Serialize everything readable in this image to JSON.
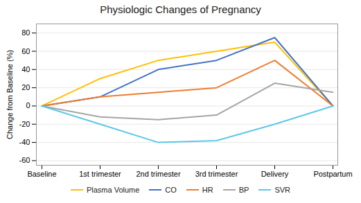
{
  "chart_data": {
    "type": "line",
    "title": "Physiologic Changes of Pregnancy",
    "ylabel": "Change from Baseline (%)",
    "categories": [
      "Baseline",
      "1st trimester",
      "2nd trimester",
      "3rd trimester",
      "Delivery",
      "Postpartum"
    ],
    "series": [
      {
        "name": "Plasma Volume",
        "color": "#FFC000",
        "values": [
          0,
          30,
          50,
          60,
          70,
          0
        ]
      },
      {
        "name": "CO",
        "color": "#4472C4",
        "values": [
          0,
          10,
          40,
          50,
          75,
          0
        ]
      },
      {
        "name": "HR",
        "color": "#ED7D31",
        "values": [
          0,
          10,
          15,
          20,
          50,
          0
        ]
      },
      {
        "name": "BP",
        "color": "#A5A5A5",
        "values": [
          0,
          -12,
          -15,
          -10,
          25,
          15
        ]
      },
      {
        "name": "SVR",
        "color": "#5BC8E8",
        "values": [
          0,
          -20,
          -40,
          -38,
          -20,
          0
        ]
      }
    ],
    "ylim": [
      -65,
      90
    ],
    "yticks": [
      -60,
      -40,
      -20,
      0,
      20,
      40,
      60,
      80
    ],
    "grid": true,
    "legend": "bottom"
  }
}
